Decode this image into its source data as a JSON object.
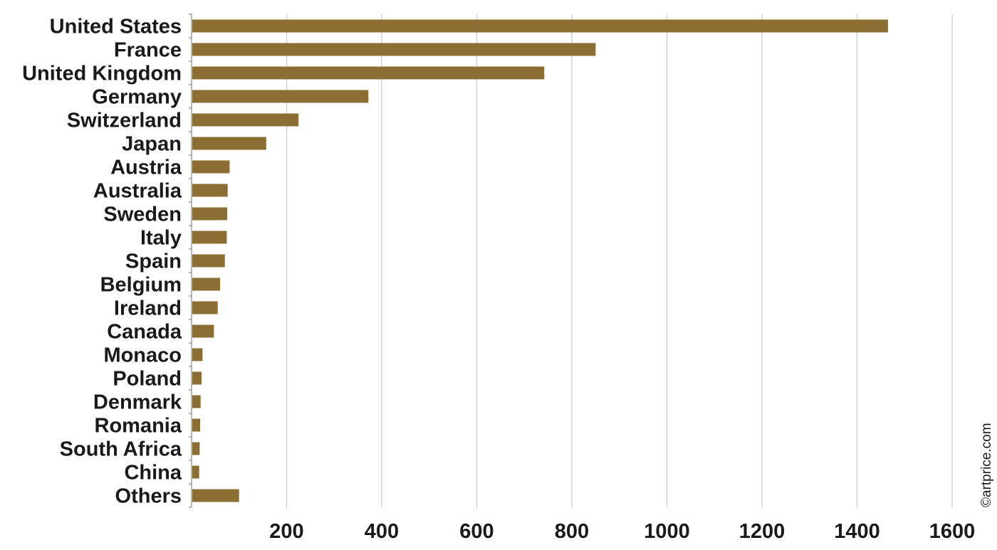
{
  "chart_data": {
    "type": "bar",
    "orientation": "horizontal",
    "categories": [
      "United States",
      "France",
      "United Kingdom",
      "Germany",
      "Switzerland",
      "Japan",
      "Austria",
      "Australia",
      "Sweden",
      "Italy",
      "Spain",
      "Belgium",
      "Ireland",
      "Canada",
      "Monaco",
      "Poland",
      "Denmark",
      "Romania",
      "South Africa",
      "China",
      "Others"
    ],
    "values": [
      1465,
      850,
      742,
      372,
      225,
      157,
      80,
      76,
      75,
      74,
      70,
      60,
      55,
      47,
      23,
      21,
      19,
      18,
      17,
      16,
      100
    ],
    "xlim": [
      0,
      1650
    ],
    "xticks": [
      200,
      400,
      600,
      800,
      1000,
      1200,
      1400,
      1600
    ],
    "grid": true,
    "bar_color": "#8c6d34",
    "title": "",
    "xlabel": "",
    "ylabel": ""
  },
  "credit": "©artprice.com"
}
